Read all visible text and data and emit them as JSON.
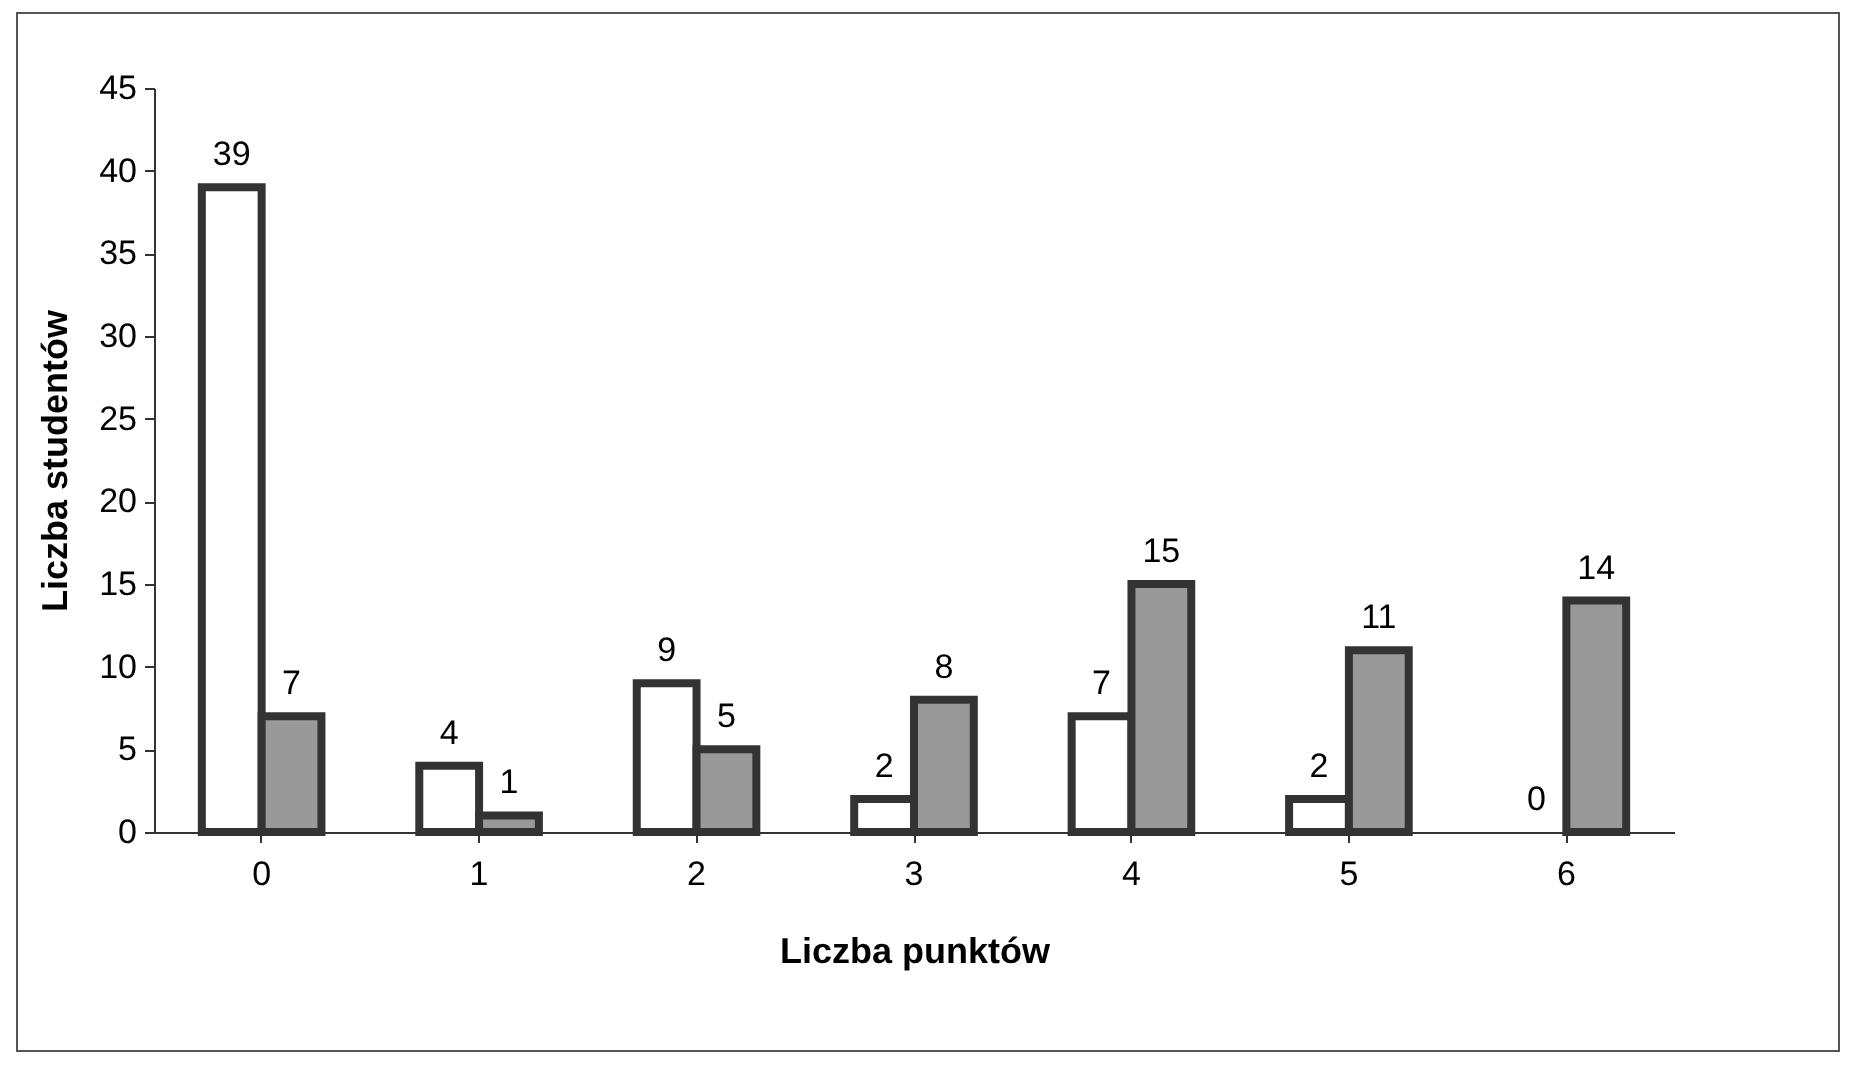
{
  "chart_data": {
    "type": "bar",
    "xlabel": "Liczba punktów",
    "ylabel": "Liczba studentów",
    "categories": [
      "0",
      "1",
      "2",
      "3",
      "4",
      "5",
      "6"
    ],
    "series": [
      {
        "color": "#ffffff",
        "values": [
          39,
          4,
          9,
          2,
          7,
          2,
          0
        ]
      },
      {
        "color": "#999999",
        "values": [
          7,
          1,
          5,
          8,
          15,
          11,
          14
        ]
      }
    ],
    "ylim": [
      0,
      45
    ],
    "yticks": [
      0,
      5,
      10,
      15,
      20,
      25,
      30,
      35,
      40,
      45
    ],
    "grid": false,
    "legend": false,
    "data_labels": true
  }
}
